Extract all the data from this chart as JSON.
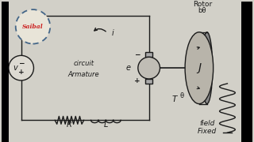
{
  "bg_color": "#d2d0c8",
  "line_color": "#1a1a1a",
  "text_color": "#1a1a1a",
  "logo_bg": "#e8e4d8",
  "logo_text": "Saibal",
  "logo_text_color": "#cc2222",
  "fixed_field_text_1": "Fixed",
  "fixed_field_text_2": "field",
  "armature_text_1": "Armature",
  "armature_text_2": "circuit",
  "label_R": "R",
  "label_L": "L",
  "label_v": "v",
  "label_e": "e",
  "label_i": "i",
  "label_T": "T",
  "label_theta": "θ",
  "label_J": "J",
  "label_bdot": "bθ̇",
  "label_Rotor": "Rotor",
  "font_size": 7,
  "font_size_small": 5.5,
  "black_bar_width": 0.045
}
